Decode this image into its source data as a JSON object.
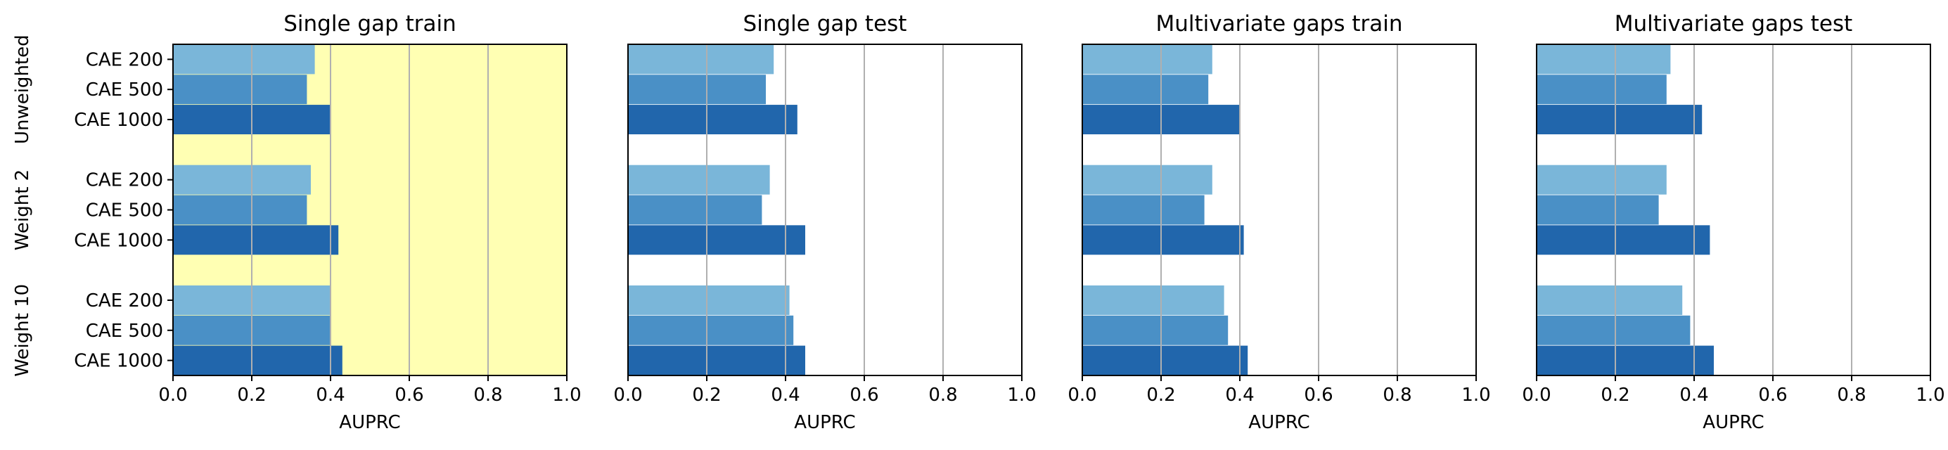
{
  "chart_data": {
    "type": "bar",
    "orientation": "horizontal",
    "xlabel": "AUPRC",
    "xlim": [
      0.0,
      1.0
    ],
    "xticks": [
      "0.0",
      "0.2",
      "0.4",
      "0.6",
      "0.8",
      "1.0"
    ],
    "grid": "x",
    "groups": [
      "Unweighted",
      "Weight 2",
      "Weight 10"
    ],
    "categories": [
      "CAE 200",
      "CAE 500",
      "CAE 1000"
    ],
    "colors": [
      "#7ab6d9",
      "#4a90c6",
      "#2166ac"
    ],
    "highlight_background": "#ffffb3",
    "panels": [
      {
        "title": "Single gap train",
        "highlighted": true,
        "values": [
          [
            0.36,
            0.34,
            0.4
          ],
          [
            0.35,
            0.34,
            0.42
          ],
          [
            0.4,
            0.4,
            0.43
          ]
        ]
      },
      {
        "title": "Single gap test",
        "highlighted": false,
        "values": [
          [
            0.37,
            0.35,
            0.43
          ],
          [
            0.36,
            0.34,
            0.45
          ],
          [
            0.41,
            0.42,
            0.45
          ]
        ]
      },
      {
        "title": "Multivariate gaps train",
        "highlighted": false,
        "values": [
          [
            0.33,
            0.32,
            0.4
          ],
          [
            0.33,
            0.31,
            0.41
          ],
          [
            0.36,
            0.37,
            0.42
          ]
        ]
      },
      {
        "title": "Multivariate gaps test",
        "highlighted": false,
        "values": [
          [
            0.34,
            0.33,
            0.42
          ],
          [
            0.33,
            0.31,
            0.44
          ],
          [
            0.37,
            0.39,
            0.45
          ]
        ]
      }
    ]
  }
}
